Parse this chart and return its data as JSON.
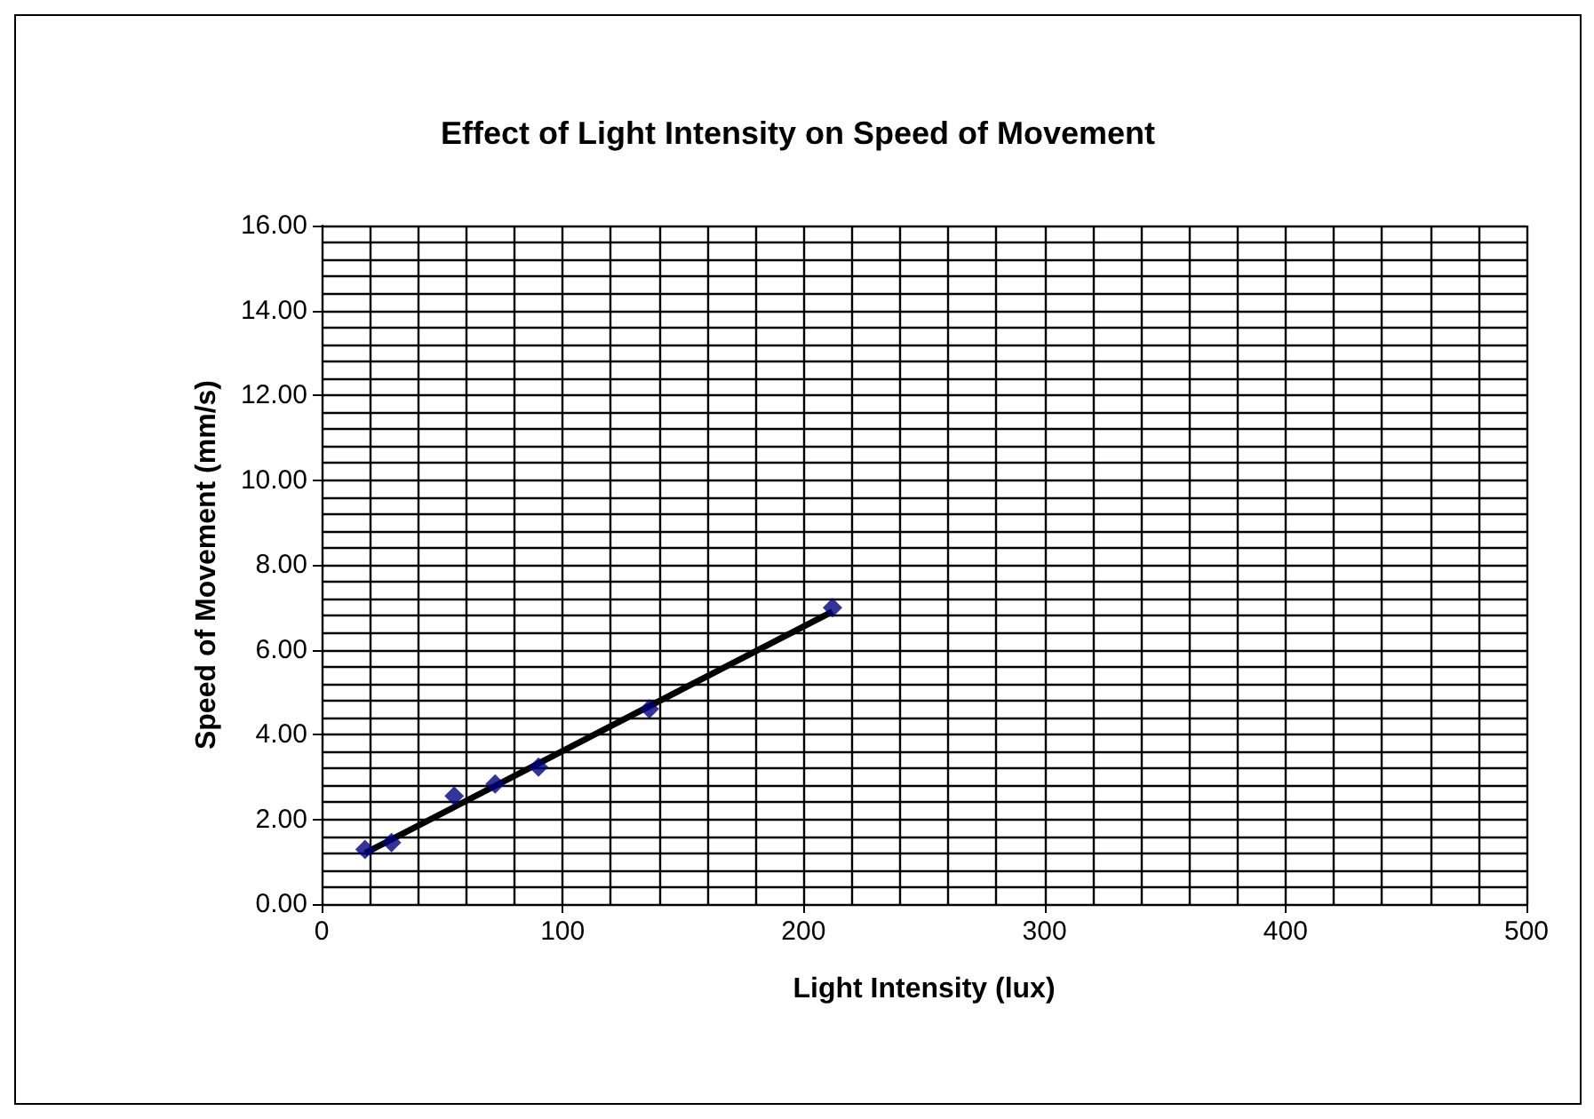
{
  "chart_data": {
    "type": "scatter",
    "title": "Effect of Light Intensity on Speed of Movement",
    "xlabel": "Light Intensity (lux)",
    "ylabel": "Speed of Movement (mm/s)",
    "series": [
      {
        "color": "#000080",
        "x": [
          18,
          29,
          55,
          72,
          90,
          136,
          212
        ],
        "values": [
          1.29,
          1.45,
          2.55,
          2.83,
          3.23,
          4.6,
          6.99
        ],
        "marker": "diamond"
      },
      {
        "type": "line",
        "color": "#000000",
        "x": [
          18,
          212
        ],
        "values": [
          1.2,
          6.9
        ],
        "marker": "none"
      }
    ],
    "xlim": [
      0,
      500
    ],
    "xticks": [
      0,
      100,
      200,
      300,
      400,
      500
    ],
    "ylim": [
      0,
      16
    ],
    "yticks": [
      {
        "value": 0,
        "label": "0.00"
      },
      {
        "value": 2,
        "label": "2.00"
      },
      {
        "value": 4,
        "label": "4.00"
      },
      {
        "value": 6,
        "label": "6.00"
      },
      {
        "value": 8,
        "label": "8.00"
      },
      {
        "value": 10,
        "label": "10.00"
      },
      {
        "value": 12,
        "label": "12.00"
      },
      {
        "value": 14,
        "label": "14.00"
      },
      {
        "value": 16,
        "label": "16.00"
      }
    ],
    "grid": true
  }
}
